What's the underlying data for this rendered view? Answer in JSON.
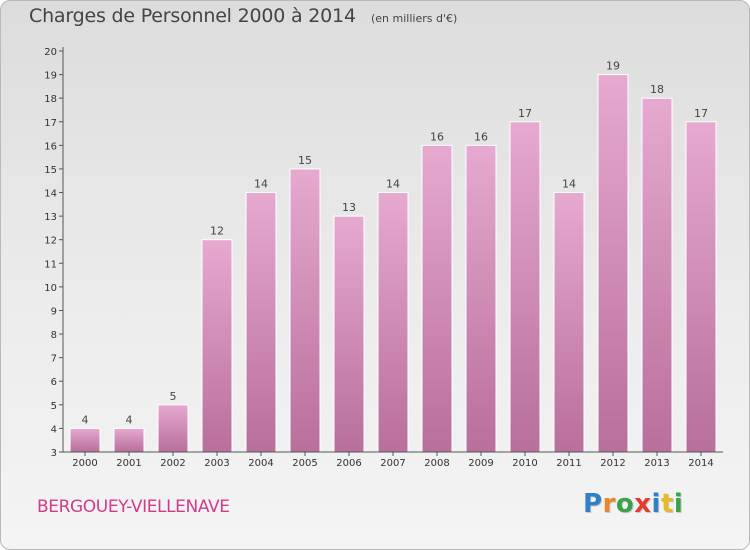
{
  "chart_data": {
    "type": "bar",
    "title": "Charges de Personnel 2000 à 2014",
    "subtitle": "(en milliers d'€)",
    "categories": [
      "2000",
      "2001",
      "2002",
      "2003",
      "2004",
      "2005",
      "2006",
      "2007",
      "2008",
      "2009",
      "2010",
      "2011",
      "2012",
      "2013",
      "2014"
    ],
    "values": [
      4,
      4,
      5,
      12,
      14,
      15,
      13,
      14,
      16,
      16,
      17,
      14,
      19,
      18,
      17
    ],
    "ylim": [
      3,
      20
    ],
    "yticks": [
      3,
      4,
      5,
      6,
      7,
      8,
      9,
      10,
      11,
      12,
      13,
      14,
      15,
      16,
      17,
      18,
      19,
      20
    ],
    "xlabel": "",
    "ylabel": "",
    "grid": false,
    "bar_color": "#d98bb9"
  },
  "footer": {
    "town": "BERGOUEY-VIELLENAVE",
    "brand_letters": [
      {
        "ch": "P",
        "color": "#2f7fc9"
      },
      {
        "ch": "r",
        "color": "#e8862a"
      },
      {
        "ch": "o",
        "color": "#3aa34a"
      },
      {
        "ch": "x",
        "color": "#e53a2f"
      },
      {
        "ch": "i",
        "color": "#2f7fc9"
      },
      {
        "ch": "t",
        "color": "#e8b92a"
      },
      {
        "ch": "i",
        "color": "#3aa34a"
      }
    ]
  },
  "colors": {
    "town_text": "#d23b8a",
    "axis": "#555555"
  }
}
